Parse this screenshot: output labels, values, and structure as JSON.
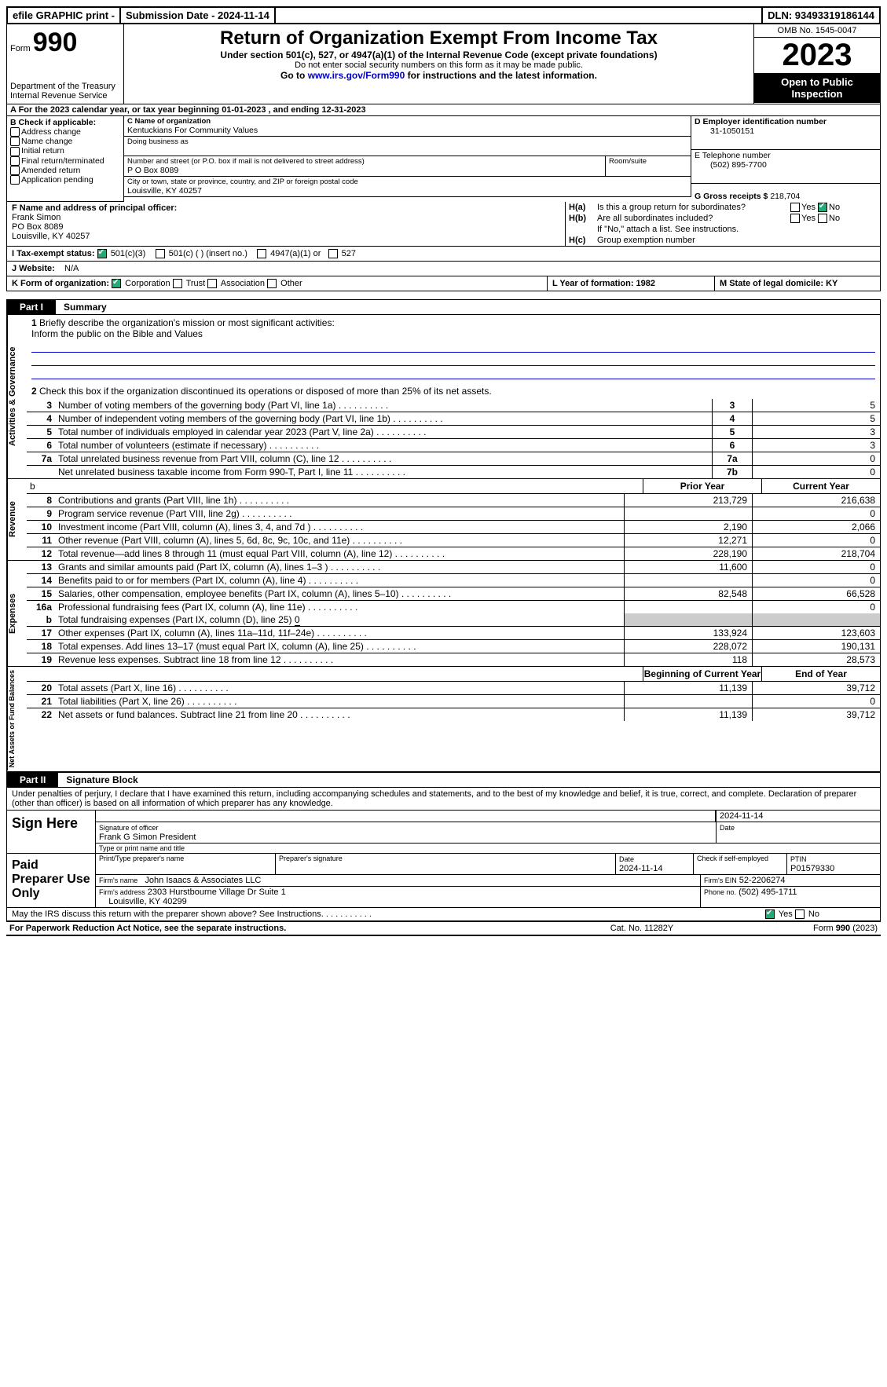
{
  "top": {
    "efile": "efile GRAPHIC print -",
    "subdate_label": "Submission Date - 2024-11-14",
    "dln": "DLN: 93493319186144"
  },
  "header": {
    "form_word": "Form",
    "form_no": "990",
    "dept": "Department of the Treasury\nInternal Revenue Service",
    "title": "Return of Organization Exempt From Income Tax",
    "sub1": "Under section 501(c), 527, or 4947(a)(1) of the Internal Revenue Code (except private foundations)",
    "sub2": "Do not enter social security numbers on this form as it may be made public.",
    "sub3_pre": "Go to ",
    "sub3_link": "www.irs.gov/Form990",
    "sub3_post": " for instructions and the latest information.",
    "omb": "OMB No. 1545-0047",
    "year": "2023",
    "open": "Open to Public Inspection"
  },
  "rowA": "A For the 2023 calendar year, or tax year beginning 01-01-2023   , and ending 12-31-2023",
  "boxB": {
    "title": "B Check if applicable:",
    "items": [
      "Address change",
      "Name change",
      "Initial return",
      "Final return/terminated",
      "Amended return",
      "Application pending"
    ]
  },
  "boxC": {
    "name_lbl": "C Name of organization",
    "name": "Kentuckians For Community Values",
    "dba_lbl": "Doing business as",
    "addr_lbl": "Number and street (or P.O. box if mail is not delivered to street address)",
    "room_lbl": "Room/suite",
    "addr": "P O Box 8089",
    "city_lbl": "City or town, state or province, country, and ZIP or foreign postal code",
    "city": "Louisville, KY  40257"
  },
  "boxD": {
    "lbl": "D Employer identification number",
    "val": "31-1050151"
  },
  "boxE": {
    "lbl": "E Telephone number",
    "val": "(502) 895-7700"
  },
  "boxG": {
    "lbl": "G Gross receipts $",
    "val": "218,704"
  },
  "boxF": {
    "lbl": "F  Name and address of principal officer:",
    "name": "Frank Simon",
    "addr1": "PO Box 8089",
    "addr2": "Louisville, KY  40257"
  },
  "boxH": {
    "a_lbl": "H(a)",
    "a_txt": "Is this a group return for subordinates?",
    "a_yes": "Yes",
    "a_no": "No",
    "b_lbl": "H(b)",
    "b_txt": "Are all subordinates included?",
    "b_note": "If \"No,\" attach a list. See instructions.",
    "c_lbl": "H(c)",
    "c_txt": "Group exemption number"
  },
  "rowI": {
    "lbl": "I  Tax-exempt status:",
    "o1": "501(c)(3)",
    "o2": "501(c) (  ) (insert no.)",
    "o3": "4947(a)(1) or",
    "o4": "527"
  },
  "rowJ": {
    "lbl": "J  Website:",
    "val": "N/A"
  },
  "rowK": {
    "lbl": "K Form of organization:",
    "o1": "Corporation",
    "o2": "Trust",
    "o3": "Association",
    "o4": "Other",
    "L": "L Year of formation: 1982",
    "M": "M State of legal domicile: KY"
  },
  "part1": {
    "num": "Part I",
    "title": "Summary"
  },
  "briefly_lbl": "Briefly describe the organization's mission or most significant activities:",
  "briefly_txt": "Inform the public on the Bible and Values",
  "line2": "Check this box     if the organization discontinued its operations or disposed of more than 25% of its net assets.",
  "gov": [
    {
      "n": "3",
      "t": "Number of voting members of the governing body (Part VI, line 1a)",
      "c": "3",
      "v": "5"
    },
    {
      "n": "4",
      "t": "Number of independent voting members of the governing body (Part VI, line 1b)",
      "c": "4",
      "v": "5"
    },
    {
      "n": "5",
      "t": "Total number of individuals employed in calendar year 2023 (Part V, line 2a)",
      "c": "5",
      "v": "3"
    },
    {
      "n": "6",
      "t": "Total number of volunteers (estimate if necessary)",
      "c": "6",
      "v": "3"
    },
    {
      "n": "7a",
      "t": "Total unrelated business revenue from Part VIII, column (C), line 12",
      "c": "7a",
      "v": "0"
    },
    {
      "n": "",
      "t": "Net unrelated business taxable income from Form 990-T, Part I, line 11",
      "c": "7b",
      "v": "0"
    }
  ],
  "rev_hdr": {
    "prior": "Prior Year",
    "curr": "Current Year"
  },
  "rev": [
    {
      "n": "8",
      "t": "Contributions and grants (Part VIII, line 1h)",
      "p": "213,729",
      "c": "216,638"
    },
    {
      "n": "9",
      "t": "Program service revenue (Part VIII, line 2g)",
      "p": "",
      "c": "0"
    },
    {
      "n": "10",
      "t": "Investment income (Part VIII, column (A), lines 3, 4, and 7d )",
      "p": "2,190",
      "c": "2,066"
    },
    {
      "n": "11",
      "t": "Other revenue (Part VIII, column (A), lines 5, 6d, 8c, 9c, 10c, and 11e)",
      "p": "12,271",
      "c": "0"
    },
    {
      "n": "12",
      "t": "Total revenue—add lines 8 through 11 (must equal Part VIII, column (A), line 12)",
      "p": "228,190",
      "c": "218,704"
    }
  ],
  "exp": [
    {
      "n": "13",
      "t": "Grants and similar amounts paid (Part IX, column (A), lines 1–3 )",
      "p": "11,600",
      "c": "0"
    },
    {
      "n": "14",
      "t": "Benefits paid to or for members (Part IX, column (A), line 4)",
      "p": "",
      "c": "0"
    },
    {
      "n": "15",
      "t": "Salaries, other compensation, employee benefits (Part IX, column (A), lines 5–10)",
      "p": "82,548",
      "c": "66,528"
    },
    {
      "n": "16a",
      "t": "Professional fundraising fees (Part IX, column (A), line 11e)",
      "p": "",
      "c": "0"
    }
  ],
  "line16b": {
    "n": "b",
    "t": "Total fundraising expenses (Part IX, column (D), line 25)",
    "v": "0"
  },
  "exp2": [
    {
      "n": "17",
      "t": "Other expenses (Part IX, column (A), lines 11a–11d, 11f–24e)",
      "p": "133,924",
      "c": "123,603"
    },
    {
      "n": "18",
      "t": "Total expenses. Add lines 13–17 (must equal Part IX, column (A), line 25)",
      "p": "228,072",
      "c": "190,131"
    },
    {
      "n": "19",
      "t": "Revenue less expenses. Subtract line 18 from line 12",
      "p": "118",
      "c": "28,573"
    }
  ],
  "net_hdr": {
    "b": "Beginning of Current Year",
    "e": "End of Year"
  },
  "net": [
    {
      "n": "20",
      "t": "Total assets (Part X, line 16)",
      "p": "11,139",
      "c": "39,712"
    },
    {
      "n": "21",
      "t": "Total liabilities (Part X, line 26)",
      "p": "",
      "c": "0"
    },
    {
      "n": "22",
      "t": "Net assets or fund balances. Subtract line 21 from line 20",
      "p": "11,139",
      "c": "39,712"
    }
  ],
  "part2": {
    "num": "Part II",
    "title": "Signature Block"
  },
  "decl": "Under penalties of perjury, I declare that I have examined this return, including accompanying schedules and statements, and to the best of my knowledge and belief, it is true, correct, and complete. Declaration of preparer (other than officer) is based on all information of which preparer has any knowledge.",
  "sign": {
    "here": "Sign Here",
    "sig_lbl": "Signature of officer",
    "date_lbl": "Date",
    "date": "2024-11-14",
    "name": "Frank G Simon President",
    "name_lbl": "Type or print name and title"
  },
  "paid": {
    "here": "Paid Preparer Use Only",
    "pname_lbl": "Print/Type preparer's name",
    "psig_lbl": "Preparer's signature",
    "pdate_lbl": "Date",
    "pdate": "2024-11-14",
    "self_lbl": "Check      if self-employed",
    "ptin_lbl": "PTIN",
    "ptin": "P01579330",
    "firm_lbl": "Firm's name",
    "firm": "John Isaacs & Associates LLC",
    "ein_lbl": "Firm's EIN",
    "ein": "52-2206274",
    "addr_lbl": "Firm's address",
    "addr1": "2303 Hurstbourne Village Dr Suite 1",
    "addr2": "Louisville, KY  40299",
    "phone_lbl": "Phone no.",
    "phone": "(502) 495-1711"
  },
  "may": "May the IRS discuss this return with the preparer shown above? See Instructions.",
  "foot": {
    "f1": "For Paperwork Reduction Act Notice, see the separate instructions.",
    "f2": "Cat. No. 11282Y",
    "f3": "Form 990 (2023)"
  },
  "vtabs": {
    "gov": "Activities & Governance",
    "rev": "Revenue",
    "exp": "Expenses",
    "net": "Net Assets or Fund Balances"
  }
}
